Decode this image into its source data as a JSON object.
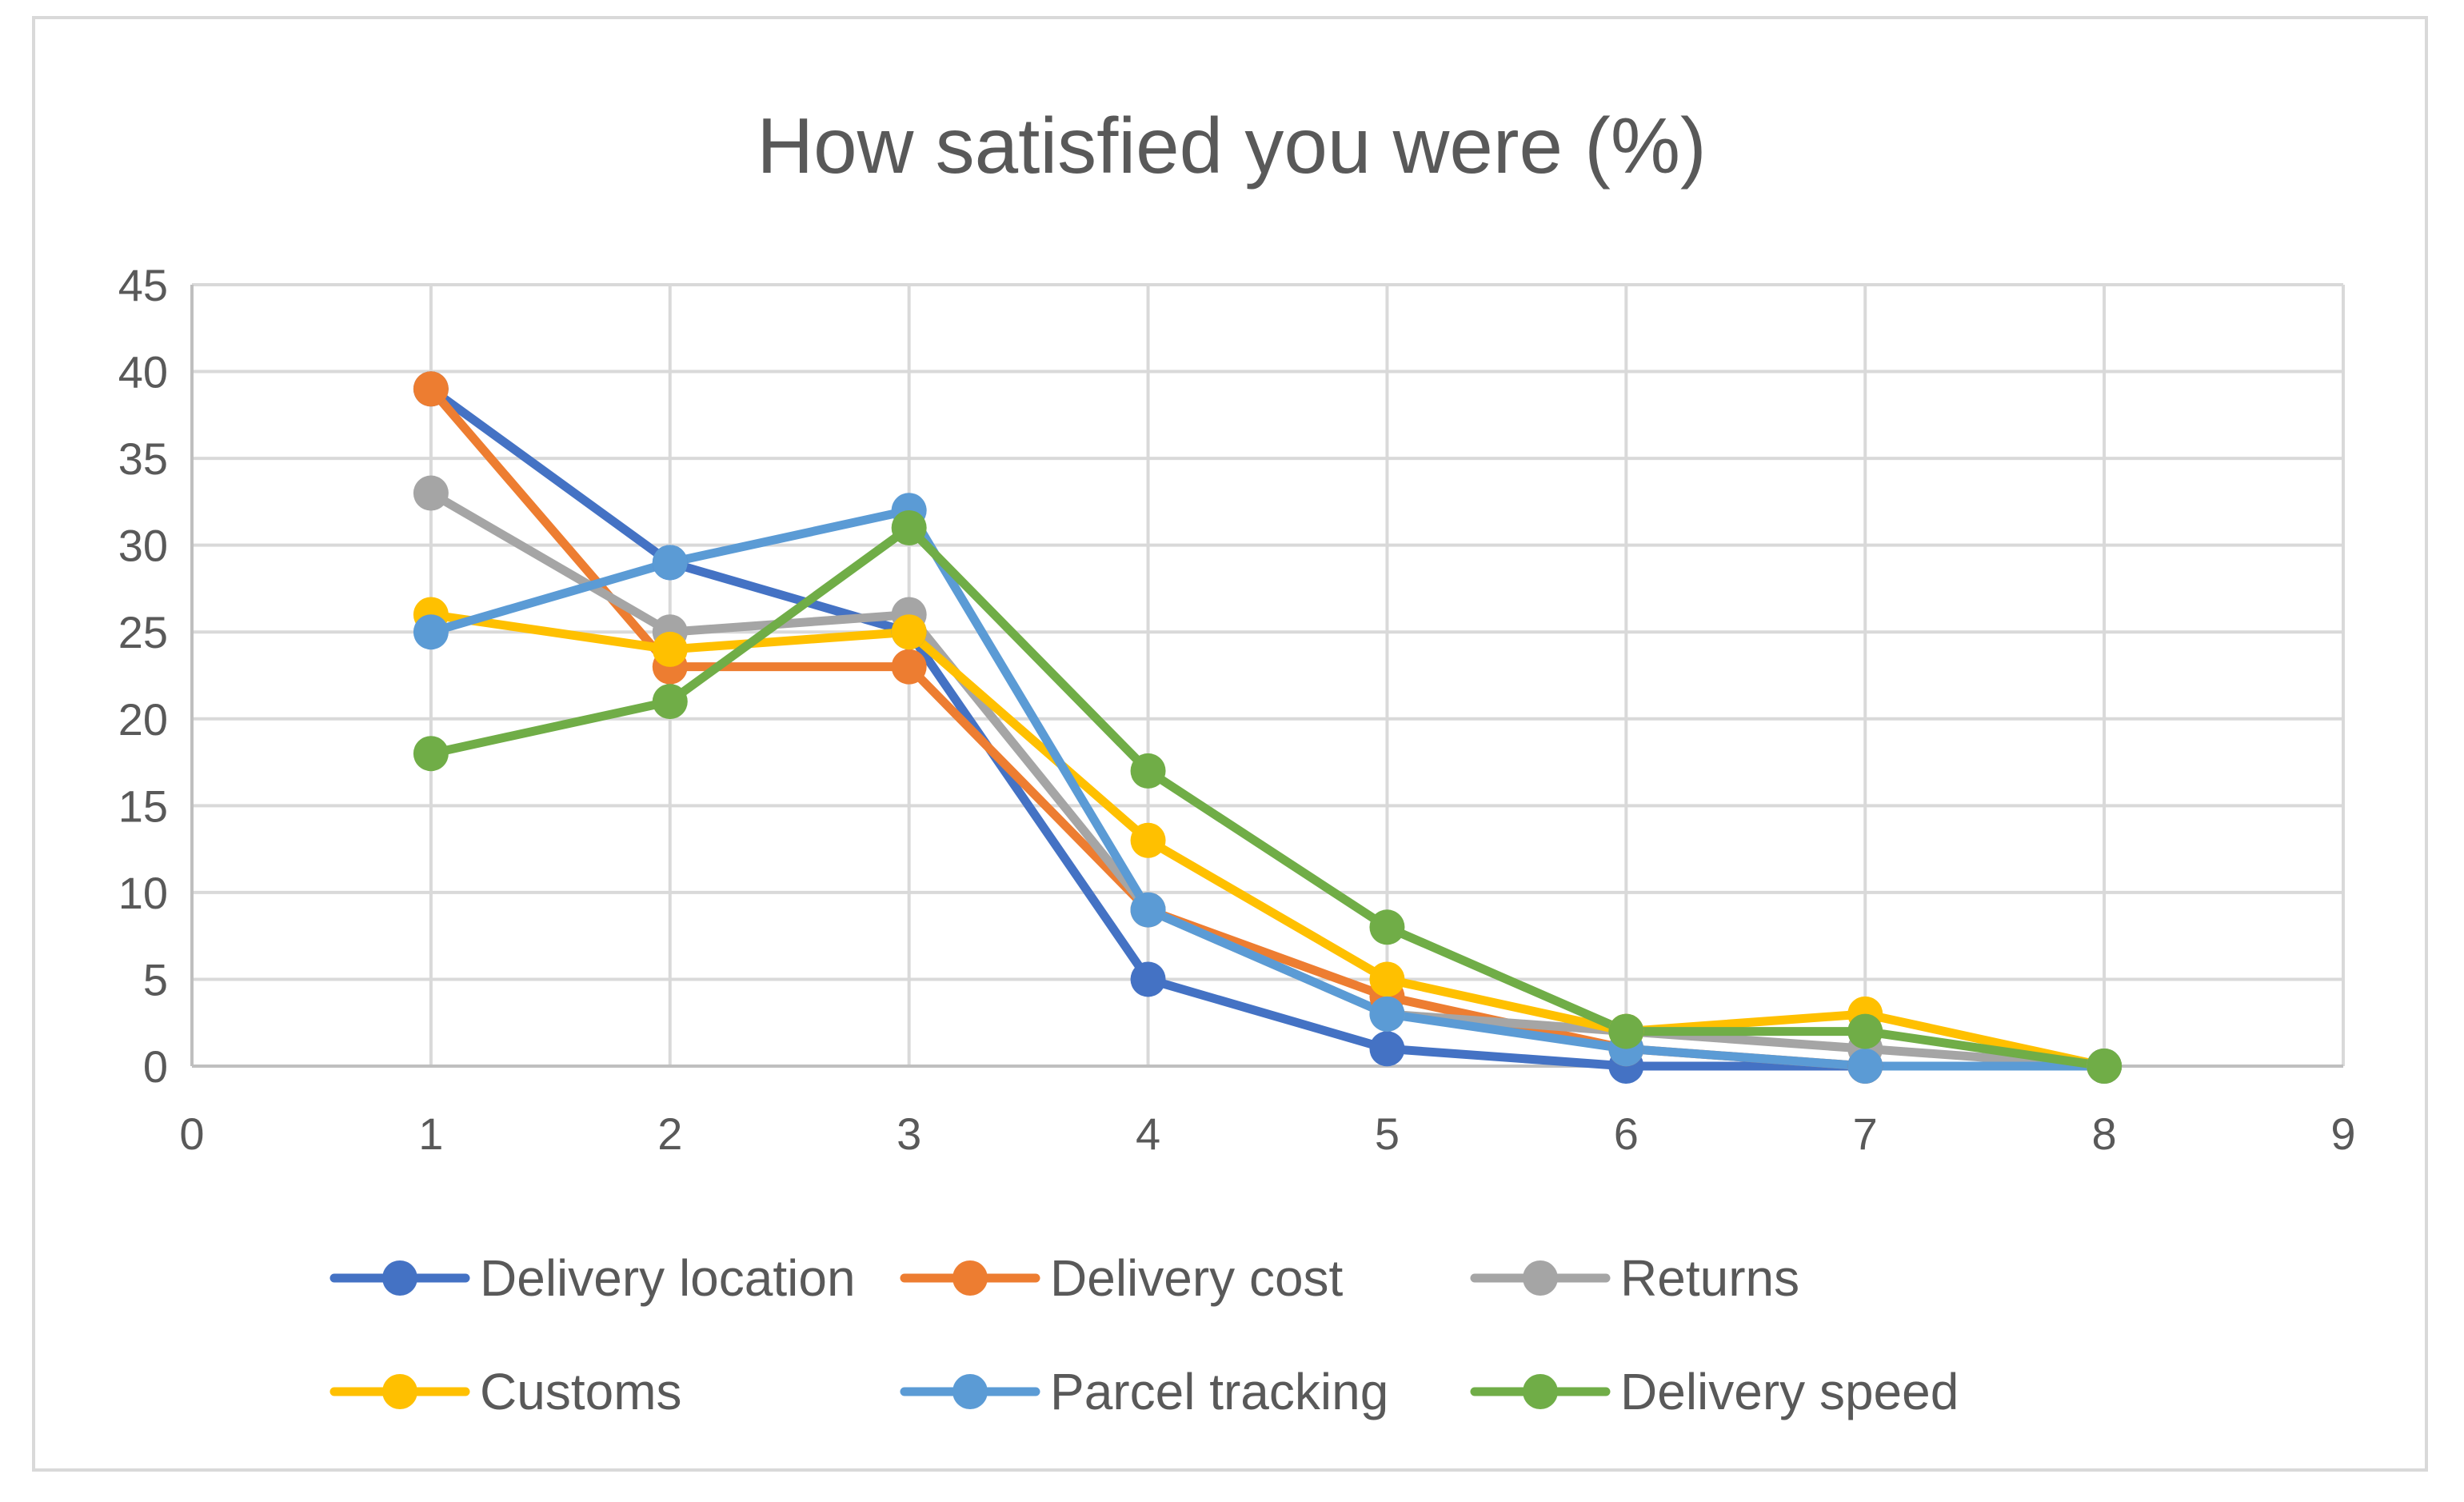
{
  "chart_data": {
    "type": "scatter",
    "mode": "lines+markers",
    "title": "How satisfied you were (%)",
    "xlabel": "",
    "ylabel": "",
    "xlim": [
      0,
      9
    ],
    "ylim": [
      0,
      45
    ],
    "x_ticks": [
      0,
      1,
      2,
      3,
      4,
      5,
      6,
      7,
      8,
      9
    ],
    "y_ticks": [
      0,
      5,
      10,
      15,
      20,
      25,
      30,
      35,
      40,
      45
    ],
    "grid": true,
    "legend_position": "bottom",
    "x": [
      1,
      2,
      3,
      4,
      5,
      6,
      7,
      8
    ],
    "series": [
      {
        "name": "Delivery location",
        "color": "#4472C4",
        "values": [
          39,
          29,
          25,
          5,
          1,
          0,
          0,
          0
        ]
      },
      {
        "name": "Delivery cost",
        "color": "#ED7D31",
        "values": [
          39,
          23,
          23,
          9,
          4,
          1,
          0,
          0
        ]
      },
      {
        "name": "Returns",
        "color": "#A5A5A5",
        "values": [
          33,
          25,
          26,
          9,
          3,
          2,
          1,
          0
        ]
      },
      {
        "name": "Customs",
        "color": "#FFC000",
        "values": [
          26,
          24,
          25,
          13,
          5,
          2,
          3,
          0
        ]
      },
      {
        "name": "Parcel tracking",
        "color": "#5B9BD5",
        "values": [
          25,
          29,
          32,
          9,
          3,
          1,
          0,
          0
        ]
      },
      {
        "name": "Delivery speed",
        "color": "#70AD47",
        "values": [
          18,
          21,
          31,
          17,
          8,
          2,
          2,
          0
        ]
      }
    ]
  }
}
